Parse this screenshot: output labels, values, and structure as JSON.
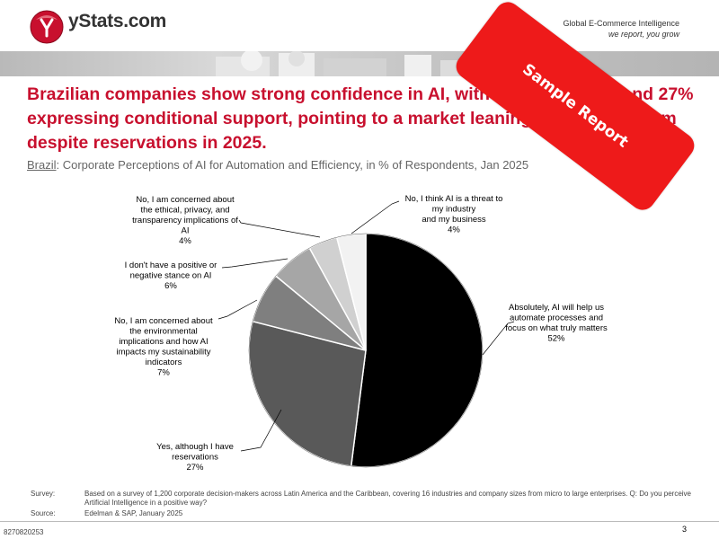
{
  "header": {
    "logo_text": "yStats.com",
    "tagline_line1": "Global E-Commerce Intelligence",
    "tagline_line2": "we report, you grow"
  },
  "title": "Brazilian companies show strong confidence in AI, with 52% optimistic and 27% expressing conditional support, pointing to a market leaning toward optimism despite reservations in 2025.",
  "subtitle": {
    "country": "Brazil",
    "text": ": Corporate Perceptions of AI for Automation and Efficiency, in % of Respondents, Jan 2025"
  },
  "stamp": "Sample Report",
  "chart_data": {
    "type": "pie",
    "unit": "%",
    "slices": [
      {
        "label": "Absolutely, AI will help us automate processes and focus on what truly matters",
        "value": 52,
        "color": "#000000"
      },
      {
        "label": "Yes, although I have reservations",
        "value": 27,
        "color": "#595959"
      },
      {
        "label": "No, I am concerned about the environmental implications and how AI impacts my sustainability indicators",
        "value": 7,
        "color": "#7f7f7f"
      },
      {
        "label": "I don't have a positive or negative stance on AI",
        "value": 6,
        "color": "#a6a6a6"
      },
      {
        "label": "No, I am concerned about the ethical, privacy, and transparency implications of AI",
        "value": 4,
        "color": "#d0d0d0"
      },
      {
        "label": "No, I think AI is a threat to my industry and my business",
        "value": 4,
        "color": "#f2f2f2"
      }
    ],
    "labels": [
      {
        "lines": [
          "Absolutely, AI will help us",
          "automate processes and",
          "focus on what truly matters",
          "52%"
        ]
      },
      {
        "lines": [
          "Yes, although I have",
          "reservations",
          "27%"
        ]
      },
      {
        "lines": [
          "No, I am concerned about",
          "the environmental",
          "implications and how AI",
          "impacts my sustainability",
          "indicators",
          "7%"
        ]
      },
      {
        "lines": [
          "I don't have a positive or",
          "negative stance on AI",
          "6%"
        ]
      },
      {
        "lines": [
          "No, I am concerned about",
          "the ethical, privacy, and",
          "transparency implications of",
          "AI",
          "4%"
        ]
      },
      {
        "lines": [
          "No, I think AI is a threat to",
          "my industry",
          "and my business",
          "4%"
        ]
      }
    ]
  },
  "footer": {
    "survey_key": "Survey:",
    "survey_text": "Based on a survey of 1,200 corporate decision-makers across Latin America and the Caribbean, covering 16 industries and company sizes from micro to large enterprises. Q: Do you perceive Artificial Intelligence in a positive way?",
    "source_key": "Source:",
    "source_text": "Edelman & SAP, January 2025"
  },
  "doc_id": "8270820253",
  "page_number": "3"
}
